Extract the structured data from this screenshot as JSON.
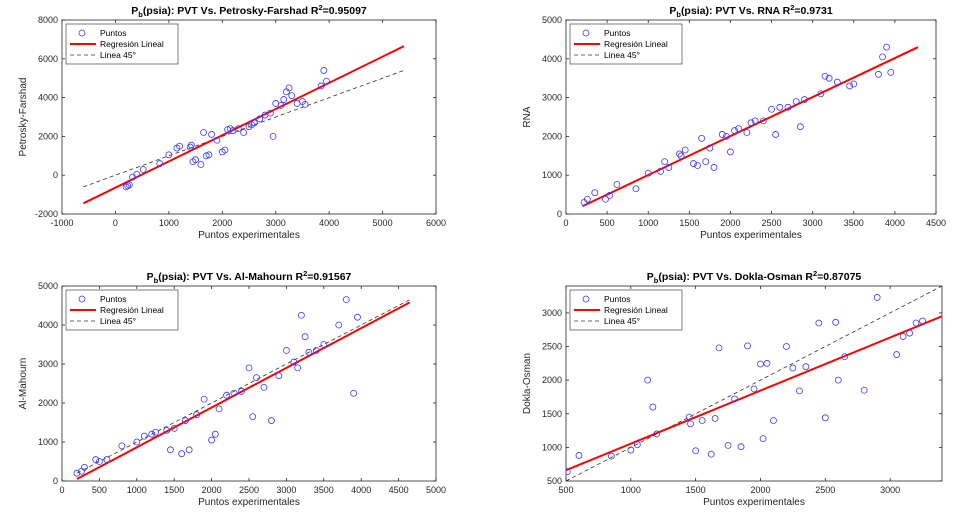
{
  "colors": {
    "points": "#3a3aff",
    "fit": "#ff0000",
    "ref": "#333333",
    "axis": "#262626"
  },
  "chart_data": [
    {
      "type": "scatter",
      "title_main": "P",
      "title_sub": "b",
      "title_rest": "(psia): PVT Vs. Petrosky-Farshad R",
      "title_sup": "2",
      "title_end": "=0.95097",
      "xlabel": "Puntos experimentales",
      "ylabel": "Petrosky-Farshad",
      "xlim": [
        -1000,
        6000
      ],
      "ylim": [
        -2000,
        8000
      ],
      "xticks": [
        -1000,
        0,
        1000,
        2000,
        3000,
        4000,
        5000,
        6000
      ],
      "yticks": [
        -2000,
        0,
        2000,
        4000,
        6000,
        8000
      ],
      "legend": [
        "Puntos",
        "Regresión Lineal",
        "Linea 45°"
      ],
      "legend_position": "top-left",
      "fit_line": {
        "x": [
          -600,
          5400
        ],
        "y": [
          -1450,
          6650
        ]
      },
      "ref_line": {
        "x": [
          -600,
          5400
        ],
        "y": [
          -600,
          5400
        ]
      },
      "points": {
        "x": [
          200,
          230,
          260,
          320,
          400,
          520,
          830,
          1000,
          1150,
          1200,
          1400,
          1420,
          1450,
          1500,
          1600,
          1650,
          1700,
          1750,
          1800,
          1900,
          2000,
          2050,
          2100,
          2150,
          2200,
          2300,
          2400,
          2500,
          2550,
          2600,
          2700,
          2800,
          2900,
          2950,
          3000,
          3100,
          3150,
          3200,
          3250,
          3300,
          3400,
          3500,
          3550,
          3850,
          3900,
          3950
        ],
        "y": [
          -600,
          -550,
          -500,
          -100,
          50,
          300,
          600,
          1050,
          1400,
          1500,
          1450,
          1550,
          700,
          800,
          550,
          2200,
          1000,
          1050,
          2100,
          1800,
          1200,
          1300,
          2350,
          2400,
          2300,
          2400,
          2200,
          2500,
          2600,
          2700,
          2900,
          3100,
          3200,
          2000,
          3700,
          3600,
          3900,
          4300,
          4500,
          4100,
          3700,
          3800,
          3650,
          4600,
          5400,
          4850
        ]
      }
    },
    {
      "type": "scatter",
      "title_main": "P",
      "title_sub": "b",
      "title_rest": "(psia): PVT Vs. RNA R",
      "title_sup": "2",
      "title_end": "=0.9731",
      "xlabel": "Puntos experimentales",
      "ylabel": "RNA",
      "xlim": [
        0,
        4500
      ],
      "ylim": [
        0,
        5000
      ],
      "xticks": [
        0,
        500,
        1000,
        1500,
        2000,
        2500,
        3000,
        3500,
        4000,
        4500
      ],
      "yticks": [
        0,
        1000,
        2000,
        3000,
        4000,
        5000
      ],
      "legend": [
        "Puntos",
        "Regresión Lineal",
        "Linea 45°"
      ],
      "legend_position": "top-left",
      "fit_line": {
        "x": [
          200,
          4280
        ],
        "y": [
          200,
          4300
        ]
      },
      "ref_line": {
        "x": [
          200,
          4280
        ],
        "y": [
          200,
          4280
        ]
      },
      "points": {
        "x": [
          220,
          260,
          350,
          480,
          530,
          620,
          850,
          1000,
          1150,
          1200,
          1250,
          1380,
          1400,
          1450,
          1550,
          1600,
          1650,
          1700,
          1750,
          1800,
          1900,
          1950,
          2000,
          2050,
          2100,
          2200,
          2250,
          2300,
          2400,
          2500,
          2550,
          2600,
          2700,
          2800,
          2850,
          2900,
          3100,
          3150,
          3200,
          3300,
          3450,
          3500,
          3800,
          3850,
          3900,
          3950
        ],
        "y": [
          300,
          380,
          550,
          380,
          480,
          760,
          650,
          1050,
          1100,
          1350,
          1200,
          1550,
          1500,
          1650,
          1300,
          1250,
          1950,
          1350,
          1700,
          1200,
          2050,
          2000,
          1600,
          2150,
          2200,
          2100,
          2350,
          2400,
          2400,
          2700,
          2050,
          2750,
          2750,
          2900,
          2250,
          2950,
          3100,
          3550,
          3500,
          3400,
          3300,
          3350,
          3600,
          4050,
          4300,
          3650
        ]
      }
    },
    {
      "type": "scatter",
      "title_main": "P",
      "title_sub": "b",
      "title_rest": "(psia): PVT Vs. Al-Mahourn R",
      "title_sup": "2",
      "title_end": "=0.91567",
      "xlabel": "Puntos experimentales",
      "ylabel": "Al-Mahourn",
      "xlim": [
        0,
        5000
      ],
      "ylim": [
        0,
        5000
      ],
      "xticks": [
        0,
        500,
        1000,
        1500,
        2000,
        2500,
        3000,
        3500,
        4000,
        4500,
        5000
      ],
      "yticks": [
        0,
        1000,
        2000,
        3000,
        4000,
        5000
      ],
      "legend": [
        "Puntos",
        "Regresión Lineal",
        "Linea 45°"
      ],
      "legend_position": "top-left",
      "fit_line": {
        "x": [
          200,
          4650
        ],
        "y": [
          50,
          4580
        ]
      },
      "ref_line": {
        "x": [
          200,
          4650
        ],
        "y": [
          200,
          4650
        ]
      },
      "points": {
        "x": [
          200,
          260,
          300,
          450,
          500,
          600,
          800,
          1000,
          1100,
          1200,
          1250,
          1400,
          1450,
          1500,
          1600,
          1650,
          1700,
          1800,
          1900,
          2000,
          2050,
          2100,
          2200,
          2300,
          2400,
          2500,
          2550,
          2600,
          2700,
          2800,
          2900,
          3000,
          3100,
          3150,
          3200,
          3250,
          3300,
          3400,
          3500,
          3700,
          3800,
          3900,
          3950
        ],
        "y": [
          200,
          250,
          350,
          550,
          500,
          550,
          900,
          1000,
          1150,
          1200,
          1250,
          1300,
          800,
          1350,
          700,
          1550,
          800,
          1700,
          2100,
          1050,
          1200,
          1850,
          2200,
          2250,
          2300,
          2900,
          1650,
          2650,
          2400,
          1550,
          2700,
          3350,
          3050,
          2900,
          4250,
          3700,
          3300,
          3350,
          3500,
          4000,
          4650,
          2250,
          4200
        ]
      }
    },
    {
      "type": "scatter",
      "title_main": "P",
      "title_sub": "b",
      "title_rest": "(psia): PVT Vs. Dokla-Osman R",
      "title_sup": "2",
      "title_end": "=0.87075",
      "xlabel": "Puntos experimentales",
      "ylabel": "Dokla-Osman",
      "xlim": [
        500,
        3400
      ],
      "ylim": [
        500,
        3400
      ],
      "xticks": [
        500,
        1000,
        1500,
        2000,
        2500,
        3000
      ],
      "yticks": [
        500,
        1000,
        1500,
        2000,
        2500,
        3000
      ],
      "legend": [
        "Puntos",
        "Regresión Lineal",
        "Linea 45°"
      ],
      "legend_position": "top-left",
      "fit_line": {
        "x": [
          500,
          3400
        ],
        "y": [
          660,
          2950
        ]
      },
      "ref_line": {
        "x": [
          500,
          3400
        ],
        "y": [
          500,
          3400
        ]
      },
      "points": {
        "x": [
          510,
          600,
          850,
          1000,
          1050,
          1130,
          1170,
          1200,
          1450,
          1460,
          1500,
          1550,
          1620,
          1650,
          1680,
          1750,
          1800,
          1850,
          1900,
          1950,
          2000,
          2020,
          2050,
          2100,
          2200,
          2250,
          2300,
          2350,
          2450,
          2500,
          2580,
          2600,
          2650,
          2800,
          2900,
          3050,
          3100,
          3150,
          3200,
          3250
        ],
        "y": [
          640,
          880,
          870,
          960,
          1040,
          2000,
          1600,
          1200,
          1450,
          1350,
          950,
          1400,
          900,
          1430,
          2480,
          1030,
          1720,
          1010,
          2510,
          1870,
          2240,
          1130,
          2250,
          1400,
          2500,
          2180,
          1840,
          2200,
          2850,
          1440,
          2860,
          2000,
          2350,
          1850,
          3230,
          2380,
          2650,
          2700,
          2850,
          2880
        ]
      }
    }
  ]
}
